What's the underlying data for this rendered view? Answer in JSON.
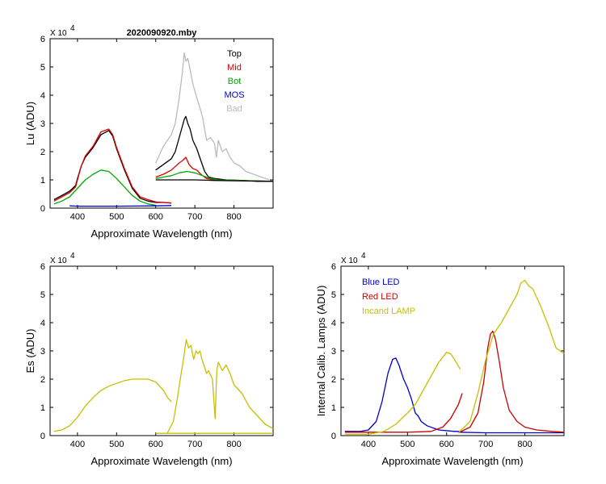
{
  "chart_data": [
    {
      "id": "lu",
      "type": "line",
      "title": "2020090920.mby",
      "xlabel": "Approximate Wavelength (nm)",
      "ylabel": "Lu (ADU)",
      "xlim": [
        330,
        900
      ],
      "ylim": [
        0,
        6
      ],
      "xticks": [
        400,
        500,
        600,
        700,
        800
      ],
      "yticks": [
        0,
        1,
        2,
        3,
        4,
        5,
        6
      ],
      "exponent_label": "X 10",
      "exponent_power": "4",
      "legend": [
        {
          "label": "Top",
          "color": "#000000"
        },
        {
          "label": "Mid",
          "color": "#dd0000"
        },
        {
          "label": "Bot",
          "color": "#00aa00"
        },
        {
          "label": "MOS",
          "color": "#0000cc"
        },
        {
          "label": "Bad",
          "color": "#bbbbbb"
        }
      ],
      "series": [
        {
          "name": "Bad",
          "color": "#bbbbbb",
          "x": [
            600,
            620,
            640,
            650,
            660,
            668,
            673,
            677,
            682,
            688,
            695,
            705,
            712,
            720,
            730,
            740,
            750,
            755,
            760,
            770,
            780,
            790,
            800,
            815,
            830,
            850,
            870,
            890
          ],
          "y": [
            1.6,
            2.2,
            2.6,
            3.0,
            3.9,
            4.8,
            5.5,
            5.2,
            5.3,
            4.9,
            4.4,
            3.9,
            3.6,
            3.2,
            2.4,
            2.5,
            2.3,
            1.8,
            2.4,
            2.0,
            2.1,
            1.8,
            1.6,
            1.5,
            1.3,
            1.2,
            1.1,
            1.0
          ]
        },
        {
          "name": "Top 1",
          "color": "#000000",
          "x": [
            340,
            360,
            380,
            395,
            400,
            410,
            420,
            440,
            460,
            480,
            490,
            500,
            520,
            540,
            560,
            580,
            600,
            620,
            640
          ],
          "y": [
            0.3,
            0.45,
            0.6,
            0.8,
            1.05,
            1.5,
            1.8,
            2.15,
            2.6,
            2.75,
            2.55,
            2.1,
            1.35,
            0.7,
            0.35,
            0.25,
            0.2,
            0.2,
            0.18
          ]
        },
        {
          "name": "Mid 1",
          "color": "#dd0000",
          "x": [
            340,
            360,
            380,
            395,
            400,
            410,
            420,
            440,
            460,
            480,
            490,
            500,
            520,
            540,
            560,
            580,
            600,
            620,
            640
          ],
          "y": [
            0.25,
            0.4,
            0.55,
            0.75,
            1.0,
            1.5,
            1.85,
            2.2,
            2.7,
            2.8,
            2.6,
            2.15,
            1.4,
            0.75,
            0.4,
            0.3,
            0.22,
            0.2,
            0.18
          ]
        },
        {
          "name": "Bot 1",
          "color": "#00aa00",
          "x": [
            340,
            360,
            380,
            400,
            420,
            440,
            460,
            480,
            500,
            520,
            540,
            560,
            580,
            600
          ],
          "y": [
            0.15,
            0.25,
            0.4,
            0.7,
            1.0,
            1.2,
            1.35,
            1.3,
            1.05,
            0.75,
            0.45,
            0.25,
            0.15,
            0.1
          ]
        },
        {
          "name": "MOS",
          "color": "#0000cc",
          "x": [
            380,
            400,
            500,
            600,
            640
          ],
          "y": [
            0.08,
            0.07,
            0.07,
            0.08,
            0.09
          ]
        },
        {
          "name": "Top 2",
          "color": "#000000",
          "x": [
            600,
            620,
            640,
            650,
            660,
            668,
            673,
            677,
            682,
            688,
            695,
            705,
            715,
            725,
            735,
            750,
            780,
            820,
            860,
            900
          ],
          "y": [
            1.35,
            1.55,
            1.75,
            2.0,
            2.5,
            2.9,
            3.15,
            3.25,
            3.0,
            2.8,
            2.4,
            2.1,
            1.7,
            1.3,
            1.1,
            1.05,
            1.0,
            0.98,
            0.95,
            0.95
          ]
        },
        {
          "name": "Mid 2",
          "color": "#dd0000",
          "x": [
            600,
            620,
            640,
            660,
            670,
            677,
            685,
            695,
            705,
            715,
            730,
            750,
            800,
            900
          ],
          "y": [
            1.1,
            1.2,
            1.35,
            1.6,
            1.7,
            1.8,
            1.55,
            1.4,
            1.35,
            1.2,
            1.05,
            1.0,
            0.98,
            0.95
          ]
        },
        {
          "name": "Bot 2",
          "color": "#00aa00",
          "x": [
            600,
            620,
            640,
            660,
            680,
            700,
            720,
            740,
            760,
            800,
            900
          ],
          "y": [
            1.05,
            1.1,
            1.15,
            1.25,
            1.3,
            1.25,
            1.15,
            1.05,
            1.0,
            0.98,
            0.95
          ]
        },
        {
          "name": "Base 2",
          "color": "#000000",
          "x": [
            600,
            650,
            700,
            750,
            800,
            850,
            900
          ],
          "y": [
            1.0,
            1.0,
            1.0,
            0.98,
            0.97,
            0.96,
            0.95
          ]
        }
      ]
    },
    {
      "id": "es",
      "type": "line",
      "title": "",
      "xlabel": "Approximate Wavelength (nm)",
      "ylabel": "Es  (ADU)",
      "xlim": [
        330,
        900
      ],
      "ylim": [
        0,
        6
      ],
      "xticks": [
        400,
        500,
        600,
        700,
        800
      ],
      "yticks": [
        0,
        1,
        2,
        3,
        4,
        5,
        6
      ],
      "exponent_label": "X 10",
      "exponent_power": "4",
      "legend": [],
      "series": [
        {
          "name": "Es 1",
          "color": "#c8c000",
          "x": [
            340,
            360,
            380,
            400,
            420,
            440,
            460,
            480,
            500,
            520,
            540,
            560,
            580,
            600,
            620,
            630,
            640
          ],
          "y": [
            0.15,
            0.2,
            0.35,
            0.65,
            1.05,
            1.35,
            1.6,
            1.75,
            1.85,
            1.95,
            2.0,
            2.0,
            2.0,
            1.9,
            1.6,
            1.35,
            1.2
          ]
        },
        {
          "name": "Es 2",
          "color": "#c8c000",
          "x": [
            630,
            645,
            655,
            665,
            672,
            678,
            684,
            690,
            697,
            703,
            708,
            713,
            718,
            723,
            730,
            735,
            745,
            752,
            756,
            760,
            770,
            780,
            790,
            800,
            820,
            840,
            860,
            880,
            900
          ],
          "y": [
            0.1,
            0.5,
            1.3,
            2.2,
            2.8,
            3.4,
            3.1,
            3.2,
            2.7,
            3.0,
            2.9,
            3.0,
            2.7,
            2.5,
            2.2,
            2.3,
            2.0,
            0.6,
            2.3,
            2.6,
            2.3,
            2.5,
            2.2,
            1.8,
            1.5,
            1.0,
            0.7,
            0.4,
            0.25
          ]
        },
        {
          "name": "Es floor",
          "color": "#c8c000",
          "x": [
            600,
            700,
            800,
            900
          ],
          "y": [
            0.08,
            0.08,
            0.08,
            0.08
          ]
        }
      ]
    },
    {
      "id": "cal",
      "type": "line",
      "title": "",
      "xlabel": "Approximate Wavelength (nm)",
      "ylabel": "Internal Calib. Lamps  (ADU)",
      "xlim": [
        330,
        900
      ],
      "ylim": [
        0,
        6
      ],
      "xticks": [
        400,
        500,
        600,
        700,
        800
      ],
      "yticks": [
        0,
        1,
        2,
        3,
        4,
        5,
        6
      ],
      "exponent_label": "X 10",
      "exponent_power": "4",
      "legend": [
        {
          "label": "Blue LED",
          "color": "#0000cc"
        },
        {
          "label": "Red LED",
          "color": "#cc0000"
        },
        {
          "label": "Incand LAMP",
          "color": "#c8c000"
        }
      ],
      "series": [
        {
          "name": "Blue LED 1",
          "color": "#0000cc",
          "x": [
            340,
            380,
            400,
            420,
            435,
            450,
            462,
            470,
            478,
            490,
            500,
            510,
            520,
            527,
            535,
            550,
            580,
            620,
            640
          ],
          "y": [
            0.15,
            0.15,
            0.2,
            0.5,
            1.2,
            2.2,
            2.7,
            2.75,
            2.5,
            2.0,
            1.7,
            1.3,
            0.8,
            0.7,
            0.5,
            0.35,
            0.2,
            0.15,
            0.15
          ]
        },
        {
          "name": "Blue LED 2",
          "color": "#0000cc",
          "x": [
            630,
            700,
            800,
            900
          ],
          "y": [
            0.12,
            0.1,
            0.1,
            0.1
          ]
        },
        {
          "name": "Red LED 1",
          "color": "#cc0000",
          "x": [
            340,
            500,
            560,
            590,
            610,
            630,
            640
          ],
          "y": [
            0.12,
            0.12,
            0.15,
            0.3,
            0.6,
            1.1,
            1.5
          ]
        },
        {
          "name": "Red LED 2",
          "color": "#cc0000",
          "x": [
            630,
            660,
            680,
            695,
            705,
            712,
            718,
            725,
            735,
            745,
            760,
            780,
            800,
            830,
            870,
            900
          ],
          "y": [
            0.1,
            0.3,
            0.8,
            1.9,
            3.1,
            3.6,
            3.7,
            3.4,
            2.6,
            1.7,
            0.9,
            0.5,
            0.3,
            0.2,
            0.15,
            0.12
          ]
        },
        {
          "name": "Incand 1",
          "color": "#c8c000",
          "x": [
            340,
            400,
            440,
            470,
            500,
            520,
            540,
            560,
            580,
            600,
            610,
            620,
            635
          ],
          "y": [
            0.05,
            0.05,
            0.15,
            0.4,
            0.8,
            1.1,
            1.6,
            2.1,
            2.6,
            2.95,
            2.9,
            2.7,
            2.35
          ]
        },
        {
          "name": "Incand 2",
          "color": "#c8c000",
          "x": [
            630,
            660,
            680,
            700,
            720,
            740,
            760,
            780,
            790,
            800,
            810,
            820,
            840,
            860,
            880,
            900
          ],
          "y": [
            0.1,
            0.5,
            1.5,
            2.7,
            3.6,
            4.0,
            4.5,
            5.0,
            5.4,
            5.5,
            5.3,
            5.2,
            4.6,
            3.9,
            3.1,
            2.9
          ]
        }
      ]
    }
  ]
}
